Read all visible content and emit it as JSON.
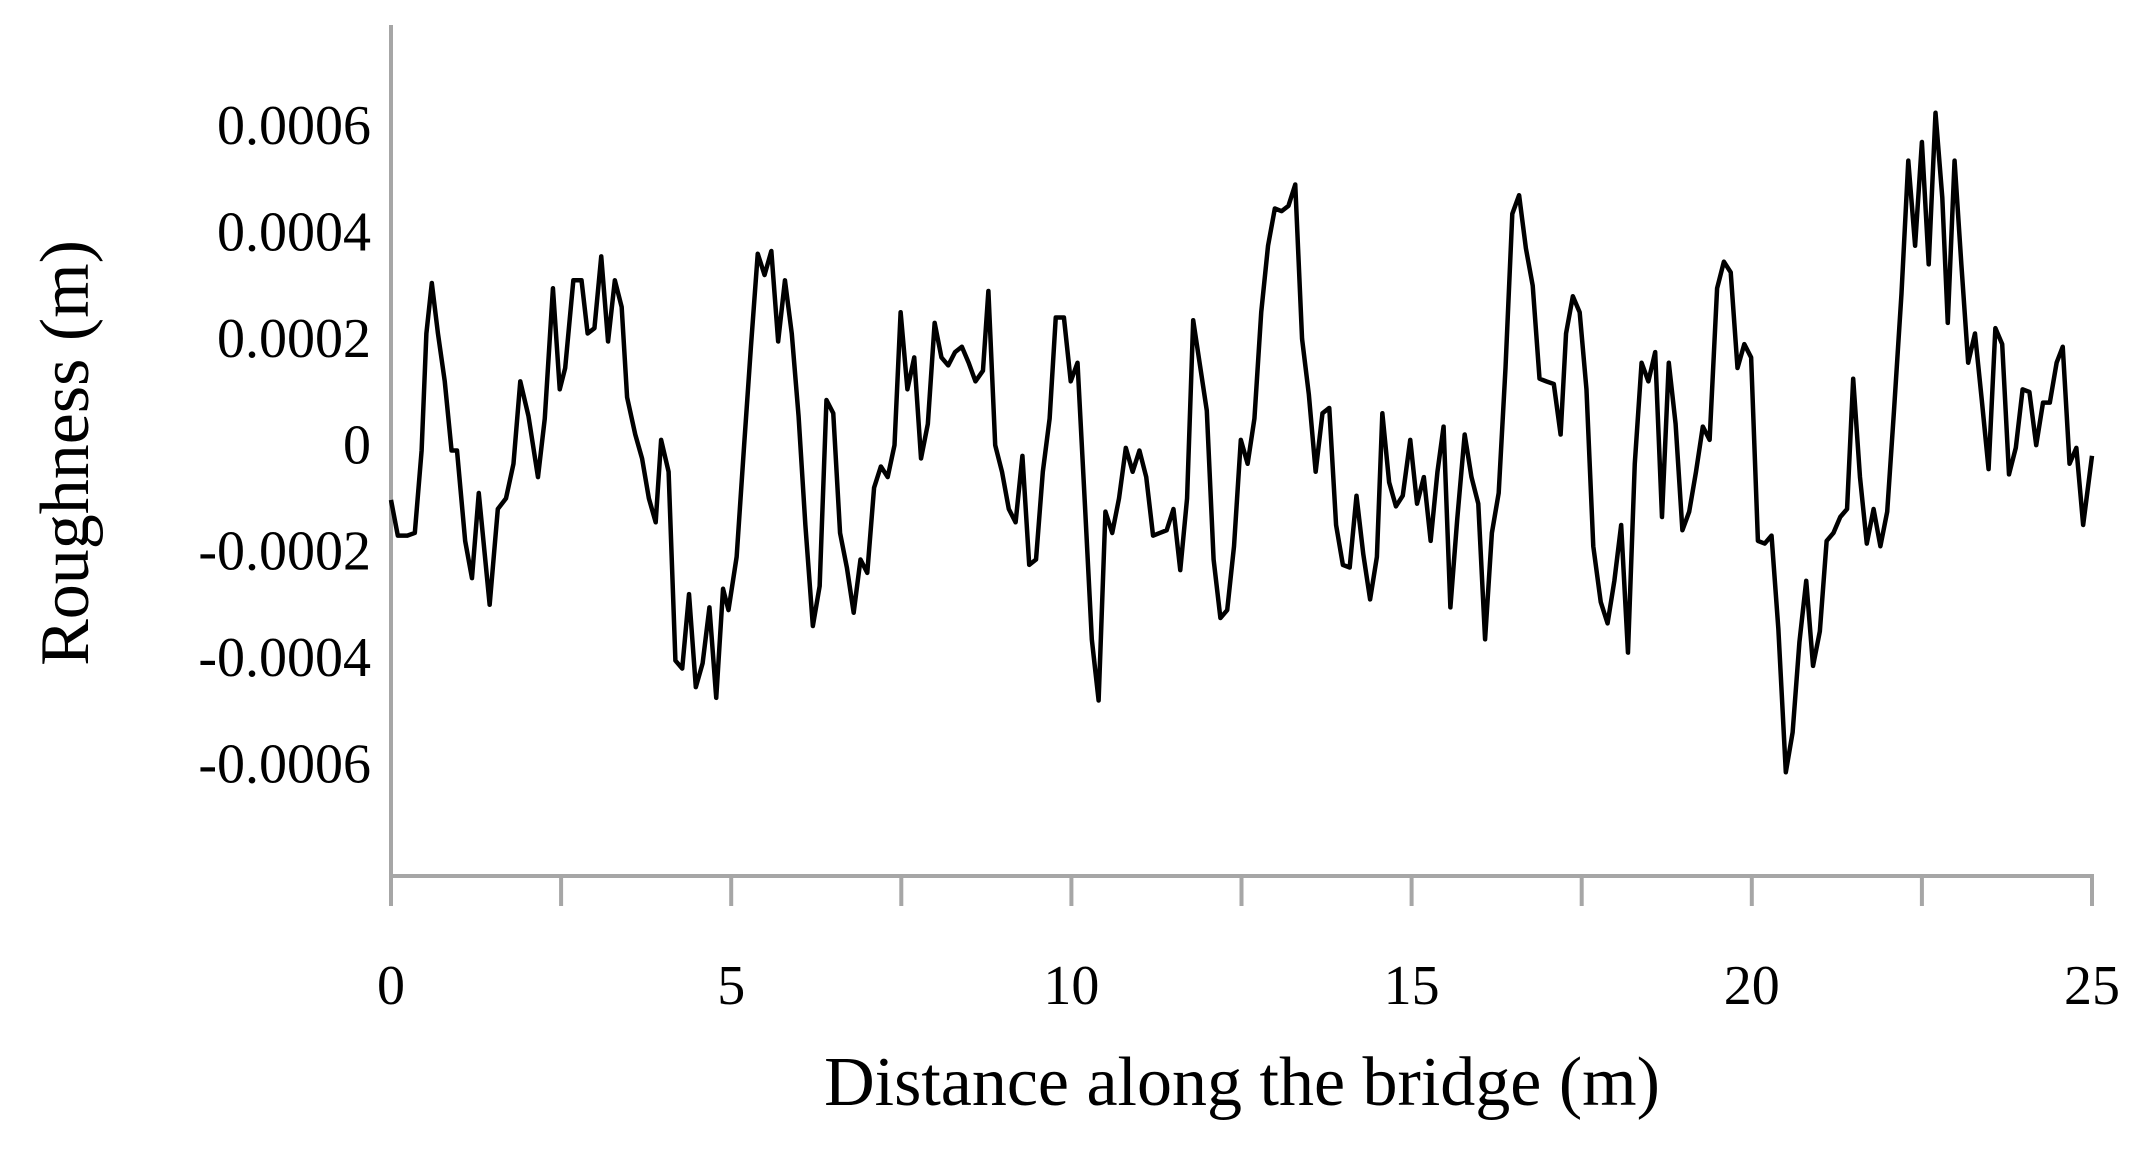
{
  "chart_data": {
    "type": "line",
    "x_label": "Distance along the bridge (m)",
    "y_label": "Roughness (m)",
    "color": "#000000",
    "axis_color": "#a6a6a6",
    "grid": false,
    "xlim": [
      0,
      25
    ],
    "ylim": [
      -0.0008,
      0.0008
    ],
    "xticks": [
      0,
      5,
      10,
      15,
      20,
      25
    ],
    "xminor_ticks": [
      2.5,
      7.5,
      12.5,
      17.5,
      22.5
    ],
    "yticks": [
      -0.0006,
      -0.0004,
      -0.0002,
      0,
      0.0002,
      0.0004,
      0.0006
    ],
    "x": [
      0,
      0.1,
      0.24,
      0.35,
      0.45,
      0.52,
      0.6,
      0.69,
      0.79,
      0.89,
      0.97,
      1.09,
      1.19,
      1.29,
      1.45,
      1.57,
      1.69,
      1.8,
      1.9,
      2.02,
      2.16,
      2.26,
      2.38,
      2.48,
      2.56,
      2.68,
      2.8,
      2.89,
      2.99,
      3.09,
      3.19,
      3.29,
      3.39,
      3.47,
      3.59,
      3.69,
      3.79,
      3.89,
      3.97,
      4.08,
      4.18,
      4.28,
      4.38,
      4.48,
      4.58,
      4.68,
      4.78,
      4.88,
      4.96,
      5.08,
      5.19,
      5.29,
      5.39,
      5.49,
      5.59,
      5.69,
      5.79,
      5.89,
      5.99,
      6.09,
      6.2,
      6.3,
      6.4,
      6.5,
      6.6,
      6.7,
      6.8,
      6.9,
      7.0,
      7.1,
      7.2,
      7.3,
      7.4,
      7.49,
      7.59,
      7.69,
      7.79,
      7.89,
      7.99,
      8.09,
      8.19,
      8.29,
      8.39,
      8.49,
      8.59,
      8.7,
      8.78,
      8.88,
      8.98,
      9.08,
      9.18,
      9.28,
      9.38,
      9.48,
      9.58,
      9.68,
      9.77,
      9.89,
      9.99,
      10.09,
      10.2,
      10.3,
      10.4,
      10.5,
      10.6,
      10.7,
      10.8,
      10.9,
      11.0,
      11.1,
      11.2,
      11.3,
      11.4,
      11.5,
      11.6,
      11.7,
      11.79,
      11.89,
      11.99,
      12.09,
      12.19,
      12.29,
      12.39,
      12.49,
      12.59,
      12.69,
      12.79,
      12.89,
      12.99,
      13.09,
      13.19,
      13.29,
      13.39,
      13.49,
      13.59,
      13.69,
      13.79,
      13.89,
      13.99,
      14.09,
      14.19,
      14.29,
      14.39,
      14.49,
      14.57,
      14.67,
      14.77,
      14.87,
      14.98,
      15.08,
      15.18,
      15.28,
      15.38,
      15.47,
      15.57,
      15.67,
      15.78,
      15.88,
      15.98,
      16.08,
      16.18,
      16.28,
      16.38,
      16.48,
      16.58,
      16.68,
      16.78,
      16.88,
      16.98,
      17.09,
      17.19,
      17.27,
      17.37,
      17.47,
      17.57,
      17.67,
      17.78,
      17.88,
      17.98,
      18.08,
      18.18,
      18.28,
      18.38,
      18.48,
      18.58,
      18.68,
      18.78,
      18.88,
      18.98,
      19.08,
      19.18,
      19.28,
      19.38,
      19.49,
      19.59,
      19.69,
      19.79,
      19.89,
      19.99,
      20.09,
      20.19,
      20.29,
      20.39,
      20.5,
      20.6,
      20.7,
      20.8,
      20.9,
      21.0,
      21.1,
      21.2,
      21.3,
      21.4,
      21.49,
      21.59,
      21.69,
      21.79,
      21.89,
      21.99,
      22.09,
      22.2,
      22.3,
      22.4,
      22.5,
      22.6,
      22.7,
      22.8,
      22.88,
      22.98,
      23.08,
      23.18,
      23.28,
      23.38,
      23.48,
      23.58,
      23.68,
      23.78,
      23.88,
      23.98,
      24.08,
      24.18,
      24.28,
      24.38,
      24.48,
      24.57,
      24.67,
      24.77,
      24.87,
      25.0
    ],
    "values": [
      -9.3e-05,
      -0.00016,
      -0.00016,
      -0.000155,
      0,
      0.00022,
      0.000315,
      0.00022,
      0.00013,
      0,
      0,
      -0.00017,
      -0.00024,
      -8e-05,
      -0.00029,
      -0.00011,
      -9e-05,
      -2.5e-05,
      0.00013,
      6.5e-05,
      -5e-05,
      6e-05,
      0.000305,
      0.000115,
      0.000155,
      0.00032,
      0.00032,
      0.00022,
      0.00023,
      0.000365,
      0.000205,
      0.00032,
      0.00027,
      0.0001,
      3e-05,
      -1.5e-05,
      -9e-05,
      -0.000135,
      2e-05,
      -4e-05,
      -0.000395,
      -0.00041,
      -0.00027,
      -0.000445,
      -0.0004,
      -0.000295,
      -0.000465,
      -0.00026,
      -0.0003,
      -0.0002,
      1e-05,
      0.000195,
      0.00037,
      0.00033,
      0.000375,
      0.000205,
      0.00032,
      0.00022,
      6.5e-05,
      -0.00014,
      -0.00033,
      -0.000255,
      9.5e-05,
      7e-05,
      -0.000155,
      -0.00022,
      -0.000305,
      -0.000205,
      -0.00023,
      -7e-05,
      -3e-05,
      -5e-05,
      1e-05,
      0.00026,
      0.000115,
      0.000175,
      -1.5e-05,
      5e-05,
      0.00024,
      0.000175,
      0.00016,
      0.000185,
      0.000195,
      0.000165,
      0.00013,
      0.00015,
      0.0003,
      1e-05,
      -4e-05,
      -0.00011,
      -0.000135,
      -1e-05,
      -0.000215,
      -0.000205,
      -4e-05,
      6e-05,
      0.00025,
      0.00025,
      0.00013,
      0.000165,
      -0.000105,
      -0.000355,
      -0.00047,
      -0.000115,
      -0.000155,
      -9e-05,
      5e-06,
      -4e-05,
      0,
      -5e-05,
      -0.00016,
      -0.000155,
      -0.00015,
      -0.00011,
      -0.000225,
      -9e-05,
      0.000245,
      0.00016,
      7.5e-05,
      -0.000205,
      -0.000315,
      -0.0003,
      -0.00018,
      2e-05,
      -2.5e-05,
      6e-05,
      0.00026,
      0.000385,
      0.000455,
      0.00045,
      0.00046,
      0.0005,
      0.00021,
      0.000105,
      -4e-05,
      7e-05,
      8e-05,
      -0.00014,
      -0.000215,
      -0.00022,
      -8.5e-05,
      -0.000195,
      -0.00028,
      -0.0002,
      7e-05,
      -6e-05,
      -0.000105,
      -8.5e-05,
      2e-05,
      -0.0001,
      -5e-05,
      -0.00017,
      -4e-05,
      4.5e-05,
      -0.000295,
      -0.00013,
      3e-05,
      -5e-05,
      -0.0001,
      -0.000355,
      -0.000155,
      -8e-05,
      0.000155,
      0.000445,
      0.00048,
      0.00038,
      0.00031,
      0.000135,
      0.00013,
      0.000125,
      3e-05,
      0.00022,
      0.00029,
      0.00026,
      0.000115,
      -0.00018,
      -0.000285,
      -0.000325,
      -0.000245,
      -0.00014,
      -0.00038,
      -2.5e-05,
      0.000165,
      0.00013,
      0.000185,
      -0.000125,
      0.000165,
      5e-05,
      -0.00015,
      -0.000115,
      -4e-05,
      4.5e-05,
      2e-05,
      0.000305,
      0.000355,
      0.000335,
      0.000155,
      0.0002,
      0.000175,
      -0.00017,
      -0.000175,
      -0.00016,
      -0.000335,
      -0.000605,
      -0.00053,
      -0.00036,
      -0.000245,
      -0.000405,
      -0.00034,
      -0.00017,
      -0.000155,
      -0.000125,
      -0.00011,
      0.000135,
      -5e-05,
      -0.000175,
      -0.00011,
      -0.00018,
      -0.000115,
      7.5e-05,
      0.000295,
      0.000545,
      0.000385,
      0.00058,
      0.00035,
      0.000635,
      0.000475,
      0.00024,
      0.000545,
      0.00035,
      0.000165,
      0.00022,
      9.5e-05,
      -3.5e-05,
      0.00023,
      0.0002,
      -4.5e-05,
      5e-06,
      0.000115,
      0.00011,
      1e-05,
      9e-05,
      9e-05,
      0.000165,
      0.000195,
      -2.5e-05,
      5e-06,
      -0.00014,
      -1e-05
    ]
  }
}
